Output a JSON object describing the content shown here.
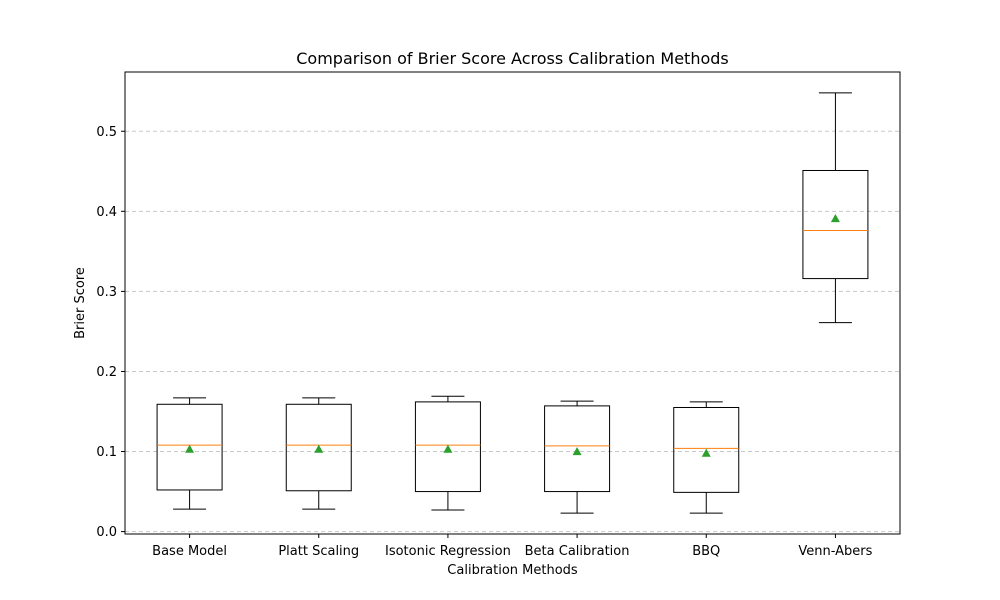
{
  "chart_data": {
    "type": "box",
    "title": "Comparison of Brier Score Across Calibration Methods",
    "xlabel": "Calibration Methods",
    "ylabel": "Brier Score",
    "ylim": [
      -0.003,
      0.574
    ],
    "yticks": [
      0.0,
      0.1,
      0.2,
      0.3,
      0.4,
      0.5
    ],
    "ytick_labels": [
      "0.0",
      "0.1",
      "0.2",
      "0.3",
      "0.4",
      "0.5"
    ],
    "grid": "y-dashed",
    "categories": [
      "Base Model",
      "Platt Scaling",
      "Isotonic Regression",
      "Beta Calibration",
      "BBQ",
      "Venn-Abers"
    ],
    "boxes": [
      {
        "whisker_low": 0.028,
        "q1": 0.052,
        "median": 0.108,
        "q3": 0.159,
        "whisker_high": 0.167,
        "mean": 0.103
      },
      {
        "whisker_low": 0.028,
        "q1": 0.051,
        "median": 0.108,
        "q3": 0.159,
        "whisker_high": 0.167,
        "mean": 0.103
      },
      {
        "whisker_low": 0.027,
        "q1": 0.05,
        "median": 0.108,
        "q3": 0.162,
        "whisker_high": 0.169,
        "mean": 0.103
      },
      {
        "whisker_low": 0.023,
        "q1": 0.05,
        "median": 0.107,
        "q3": 0.157,
        "whisker_high": 0.163,
        "mean": 0.1
      },
      {
        "whisker_low": 0.023,
        "q1": 0.049,
        "median": 0.104,
        "q3": 0.155,
        "whisker_high": 0.162,
        "mean": 0.098
      },
      {
        "whisker_low": 0.261,
        "q1": 0.316,
        "median": 0.376,
        "q3": 0.451,
        "whisker_high": 0.548,
        "mean": 0.391
      }
    ],
    "colors": {
      "box": "#000000",
      "median": "#ff7f0e",
      "mean": "#2ca02c",
      "grid": "#c8c8c8"
    }
  }
}
